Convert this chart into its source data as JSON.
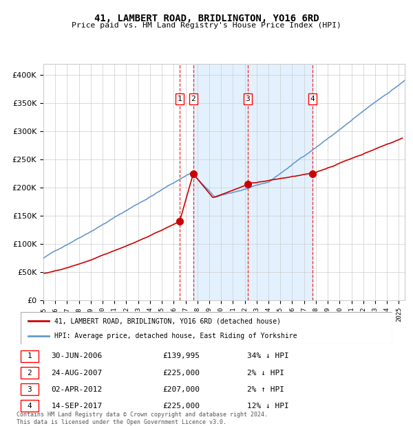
{
  "title": "41, LAMBERT ROAD, BRIDLINGTON, YO16 6RD",
  "subtitle": "Price paid vs. HM Land Registry's House Price Index (HPI)",
  "hpi_color": "#6699cc",
  "price_color": "#cc0000",
  "marker_color": "#cc0000",
  "bg_color": "#ffffff",
  "grid_color": "#cccccc",
  "span_color": "#ddeeff",
  "transactions": [
    {
      "label": "1",
      "date_dec": 2006.5,
      "price": 139995
    },
    {
      "label": "2",
      "date_dec": 2007.65,
      "price": 225000
    },
    {
      "label": "3",
      "date_dec": 2012.25,
      "price": 207000
    },
    {
      "label": "4",
      "date_dec": 2017.71,
      "price": 225000
    }
  ],
  "table_rows": [
    {
      "num": "1",
      "date": "30-JUN-2006",
      "price": "£139,995",
      "hpi": "34% ↓ HPI"
    },
    {
      "num": "2",
      "date": "24-AUG-2007",
      "price": "£225,000",
      "hpi": "2% ↓ HPI"
    },
    {
      "num": "3",
      "date": "02-APR-2012",
      "price": "£207,000",
      "hpi": "2% ↑ HPI"
    },
    {
      "num": "4",
      "date": "14-SEP-2017",
      "price": "£225,000",
      "hpi": "12% ↓ HPI"
    }
  ],
  "legend1": "41, LAMBERT ROAD, BRIDLINGTON, YO16 6RD (detached house)",
  "legend2": "HPI: Average price, detached house, East Riding of Yorkshire",
  "footer": "Contains HM Land Registry data © Crown copyright and database right 2024.\nThis data is licensed under the Open Government Licence v3.0.",
  "ylim": [
    0,
    420000
  ],
  "xlim_start": 1995.0,
  "xlim_end": 2025.5,
  "yticks": [
    0,
    50000,
    100000,
    150000,
    200000,
    250000,
    300000,
    350000,
    400000
  ],
  "xticks": [
    1995,
    1996,
    1997,
    1998,
    1999,
    2000,
    2001,
    2002,
    2003,
    2004,
    2005,
    2006,
    2007,
    2008,
    2009,
    2010,
    2011,
    2012,
    2013,
    2014,
    2015,
    2016,
    2017,
    2018,
    2019,
    2020,
    2021,
    2022,
    2023,
    2024,
    2025
  ]
}
